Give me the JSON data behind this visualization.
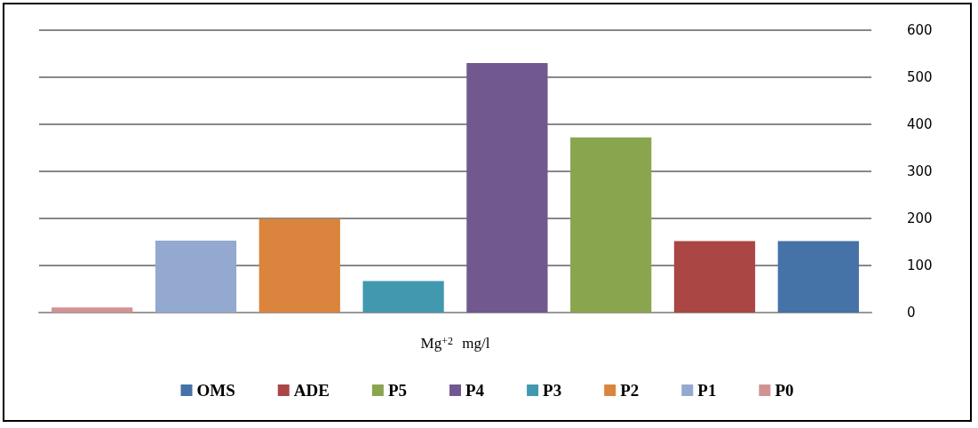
{
  "chart_data": {
    "type": "bar",
    "xlabel": "Mg$^{+2}$ mg/l",
    "categories": [
      null
    ],
    "series": [
      {
        "name": "OMS",
        "color": "#4572a7",
        "values": [
          152
        ]
      },
      {
        "name": "ADE",
        "color": "#aa4643",
        "values": [
          152
        ]
      },
      {
        "name": "P5",
        "color": "#89a54e",
        "values": [
          372
        ]
      },
      {
        "name": "P4",
        "color": "#71588f",
        "values": [
          530
        ]
      },
      {
        "name": "P3",
        "color": "#4198af",
        "values": [
          67
        ]
      },
      {
        "name": "P2",
        "color": "#db843d",
        "values": [
          199
        ]
      },
      {
        "name": "P1",
        "color": "#93a9cf",
        "values": [
          153
        ]
      },
      {
        "name": "P0",
        "color": "#d19392",
        "values": [
          11
        ]
      }
    ],
    "ylim": [
      0,
      600
    ],
    "yticks": [
      0,
      100,
      200,
      300,
      400,
      500,
      600
    ],
    "grid": "y",
    "legend": "bottom"
  }
}
